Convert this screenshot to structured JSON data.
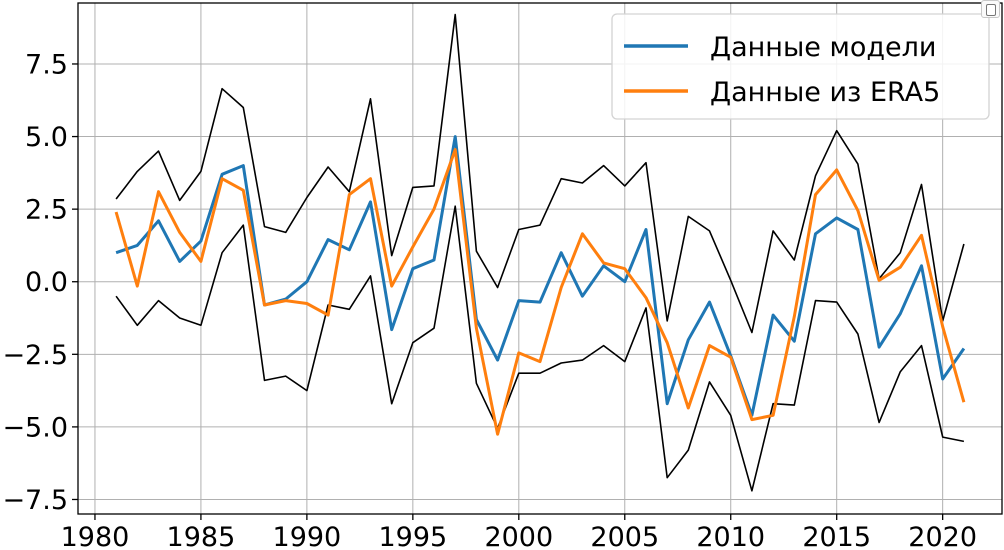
{
  "chart_data": {
    "type": "line",
    "title": "",
    "xlabel": "",
    "ylabel": "",
    "xlim": [
      1979.2,
      2022.8
    ],
    "ylim": [
      -8.0,
      9.6
    ],
    "grid": true,
    "legend_position": "top-right",
    "x_ticks": [
      1980,
      1985,
      1990,
      1995,
      2000,
      2005,
      2010,
      2015,
      2020
    ],
    "x_tick_labels": [
      "1980",
      "1985",
      "1990",
      "1995",
      "2000",
      "2005",
      "2010",
      "2015",
      "2020"
    ],
    "y_ticks": [
      7.5,
      5.0,
      2.5,
      0.0,
      -2.5,
      -5.0,
      -7.5
    ],
    "y_tick_labels": [
      "7.5",
      "5.0",
      "2.5",
      "0.0",
      "−2.5",
      "−5.0",
      "−7.5"
    ],
    "x": [
      1981,
      1982,
      1983,
      1984,
      1985,
      1986,
      1987,
      1988,
      1989,
      1990,
      1991,
      1992,
      1993,
      1994,
      1995,
      1996,
      1997,
      1998,
      1999,
      2000,
      2001,
      2002,
      2003,
      2004,
      2005,
      2006,
      2007,
      2008,
      2009,
      2010,
      2011,
      2012,
      2013,
      2014,
      2015,
      2016,
      2017,
      2018,
      2019,
      2020,
      2021
    ],
    "series": [
      {
        "name": "Данные модели",
        "color": "#1f77b4",
        "values": [
          1.0,
          1.25,
          2.1,
          0.7,
          1.4,
          3.7,
          4.0,
          -0.8,
          -0.6,
          0.0,
          1.45,
          1.1,
          2.75,
          -1.65,
          0.45,
          0.75,
          5.0,
          -1.3,
          -2.7,
          -0.65,
          -0.7,
          1.0,
          -0.5,
          0.55,
          0.0,
          1.8,
          -4.2,
          -2.0,
          -0.7,
          -2.55,
          -4.6,
          -1.15,
          -2.05,
          1.65,
          2.2,
          1.8,
          -2.25,
          -1.1,
          0.55,
          -3.35,
          -2.3
        ]
      },
      {
        "name": "Данные из ERA5",
        "color": "#ff7f0e",
        "values": [
          2.4,
          -0.15,
          3.1,
          1.7,
          0.7,
          3.55,
          3.15,
          -0.8,
          -0.65,
          -0.75,
          -1.15,
          3.0,
          3.55,
          -0.15,
          1.2,
          2.5,
          4.55,
          -1.6,
          -5.25,
          -2.45,
          -2.75,
          -0.2,
          1.65,
          0.65,
          0.45,
          -0.55,
          -2.1,
          -4.35,
          -2.2,
          -2.6,
          -4.75,
          -4.6,
          -1.2,
          3.0,
          3.85,
          2.45,
          0.05,
          0.5,
          1.6,
          -1.55,
          -4.15
        ]
      },
      {
        "name": "",
        "color": "#000000",
        "values": [
          2.85,
          3.8,
          4.5,
          2.8,
          3.8,
          6.65,
          6.0,
          1.9,
          1.7,
          2.9,
          3.95,
          3.1,
          6.3,
          0.9,
          3.25,
          3.3,
          9.2,
          1.05,
          -0.2,
          1.8,
          1.95,
          3.55,
          3.4,
          4.0,
          3.3,
          4.1,
          -1.35,
          2.25,
          1.75,
          0.05,
          -1.75,
          1.75,
          0.75,
          3.65,
          5.2,
          4.05,
          0.1,
          1.0,
          3.35,
          -1.35,
          1.3
        ]
      },
      {
        "name": "",
        "color": "#000000",
        "values": [
          -0.5,
          -1.5,
          -0.65,
          -1.25,
          -1.5,
          1.0,
          1.95,
          -3.4,
          -3.25,
          -3.75,
          -0.8,
          -0.95,
          0.2,
          -4.2,
          -2.1,
          -1.6,
          2.6,
          -3.5,
          -5.05,
          -3.15,
          -3.15,
          -2.8,
          -2.7,
          -2.2,
          -2.75,
          -0.9,
          -6.75,
          -5.8,
          -3.45,
          -4.6,
          -7.2,
          -4.2,
          -4.25,
          -0.65,
          -0.7,
          -1.8,
          -4.85,
          -3.1,
          -2.2,
          -5.35,
          -5.5
        ]
      }
    ],
    "legend": {
      "entries": [
        "Данные модели",
        "Данные из ERA5"
      ],
      "colors": [
        "#1f77b4",
        "#ff7f0e"
      ]
    }
  },
  "ui": {
    "copy_icon": "copy-icon"
  }
}
